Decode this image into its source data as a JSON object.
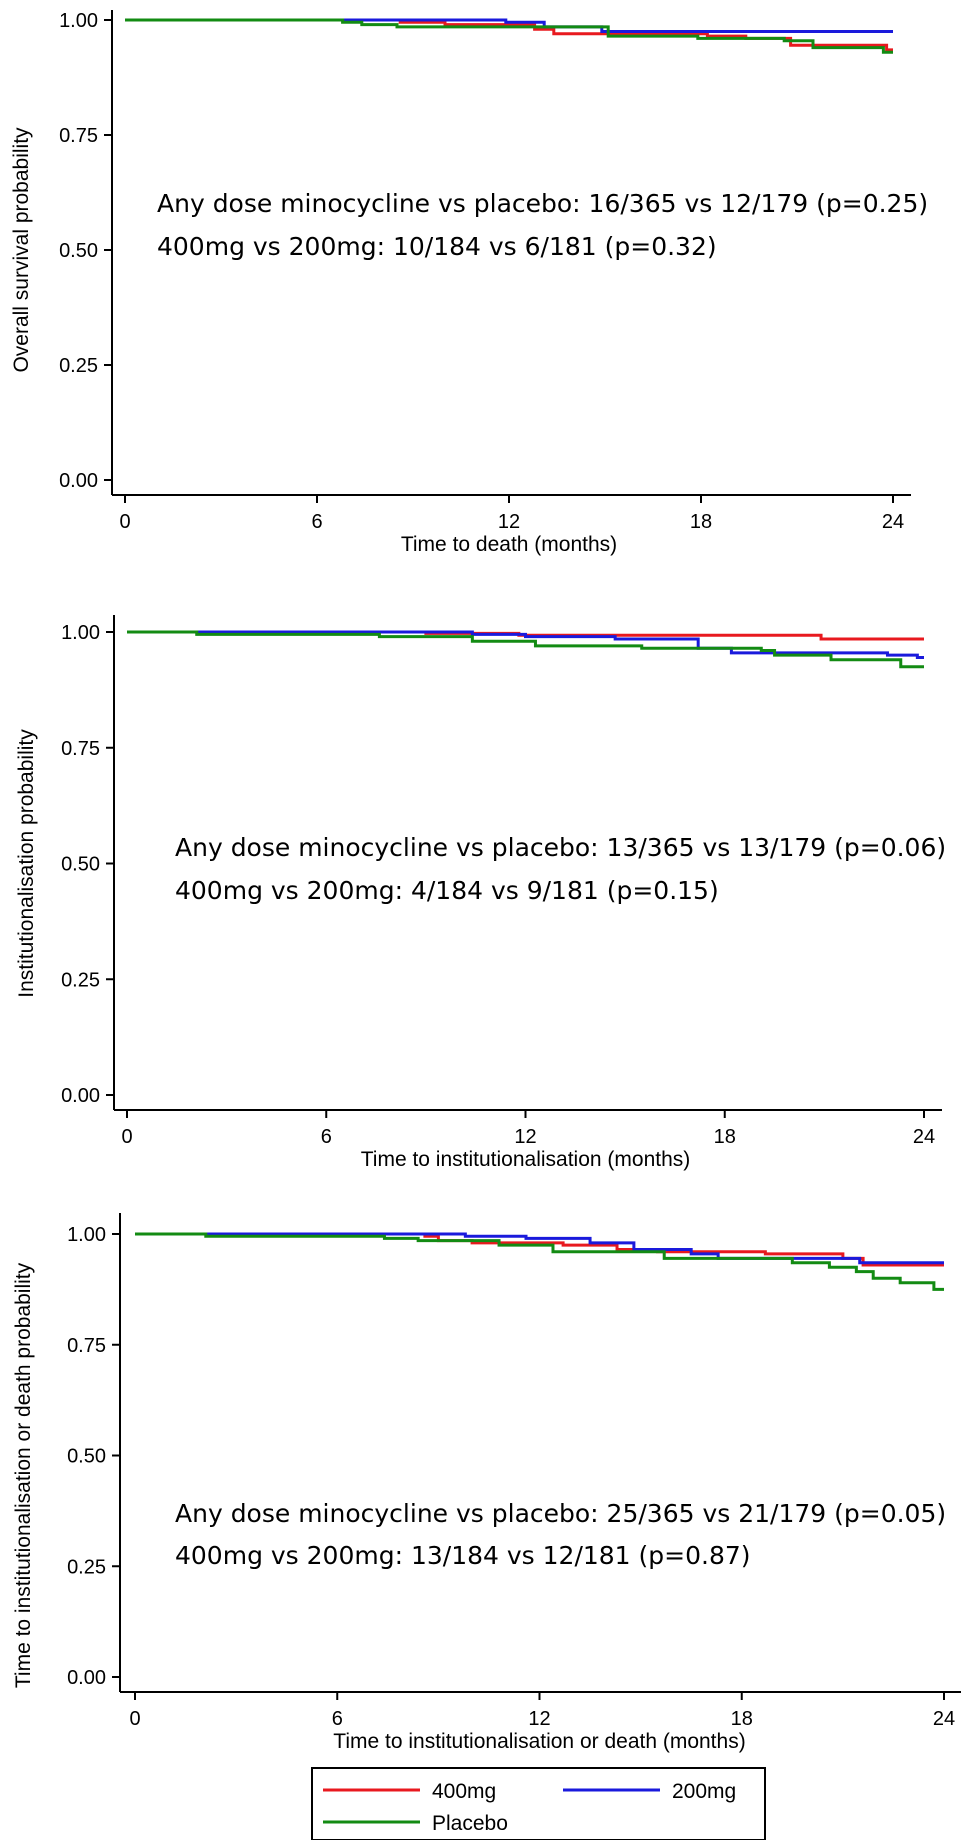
{
  "chart_data": [
    {
      "type": "line",
      "xlabel": "Time to death (months)",
      "ylabel": "Overall survival probability",
      "xlim": [
        0,
        24
      ],
      "ylim": [
        0,
        1
      ],
      "xticks": [
        "0",
        "6",
        "12",
        "18",
        "24"
      ],
      "yticks": [
        "0.00",
        "0.25",
        "0.50",
        "0.75",
        "1.00"
      ],
      "annotations": [
        "Any dose minocycline vs placebo: 16/365 vs 12/179 (p=0.25)",
        "400mg vs 200mg: 10/184 vs 6/181 (p=0.32)"
      ],
      "series": [
        {
          "name": "400mg",
          "color": "#e8191f",
          "x": [
            0,
            8.6,
            10,
            12.8,
            13.4,
            18.2,
            19.4,
            20.8,
            23.8,
            24
          ],
          "y": [
            1.0,
            0.995,
            0.99,
            0.98,
            0.97,
            0.965,
            0.96,
            0.945,
            0.935,
            0.935
          ]
        },
        {
          "name": "200mg",
          "color": "#1a1adc",
          "x": [
            0,
            6.8,
            11.9,
            13.1,
            14.9,
            24
          ],
          "y": [
            1.0,
            1.0,
            0.995,
            0.985,
            0.975,
            0.975
          ]
        },
        {
          "name": "Placebo",
          "color": "#138b13",
          "x": [
            0,
            6.8,
            7.4,
            8.5,
            15.1,
            17.9,
            20.6,
            21.5,
            23.7,
            24
          ],
          "y": [
            1.0,
            0.995,
            0.99,
            0.985,
            0.965,
            0.96,
            0.955,
            0.94,
            0.93,
            0.93
          ]
        }
      ]
    },
    {
      "type": "line",
      "xlabel": "Time to institutionalisation (months)",
      "ylabel": "Institutionalisation probability",
      "xlim": [
        0,
        24
      ],
      "ylim": [
        0,
        1
      ],
      "xticks": [
        "0",
        "6",
        "12",
        "18",
        "24"
      ],
      "yticks": [
        "0.00",
        "0.25",
        "0.50",
        "0.75",
        "1.00"
      ],
      "annotations": [
        "Any dose minocycline vs placebo: 13/365 vs 13/179 (p=0.06)",
        "400mg vs 200mg: 4/184 vs 9/181 (p=0.15)"
      ],
      "series": [
        {
          "name": "400mg",
          "color": "#e8191f",
          "x": [
            0,
            9,
            11.8,
            20.9,
            24
          ],
          "y": [
            1.0,
            0.997,
            0.993,
            0.985,
            0.985
          ]
        },
        {
          "name": "200mg",
          "color": "#1a1adc",
          "x": [
            0,
            2.1,
            10.4,
            12,
            14.7,
            17.2,
            18.2,
            22.9,
            23.8,
            24
          ],
          "y": [
            1.0,
            1.0,
            0.995,
            0.99,
            0.985,
            0.965,
            0.955,
            0.95,
            0.945,
            0.945
          ]
        },
        {
          "name": "Placebo",
          "color": "#138b13",
          "x": [
            0,
            2.1,
            7.6,
            10.4,
            12.3,
            15.5,
            19.1,
            19.5,
            21.2,
            23.3,
            24
          ],
          "y": [
            1.0,
            0.995,
            0.99,
            0.98,
            0.97,
            0.965,
            0.96,
            0.95,
            0.94,
            0.925,
            0.925
          ]
        }
      ]
    },
    {
      "type": "line",
      "xlabel": "Time to institutionalisation or death (months)",
      "ylabel": "Time to institutionalisation or death probability",
      "xlim": [
        0,
        24
      ],
      "ylim": [
        0,
        1
      ],
      "xticks": [
        "0",
        "6",
        "12",
        "18",
        "24"
      ],
      "yticks": [
        "0.00",
        "0.25",
        "0.50",
        "0.75",
        "1.00"
      ],
      "annotations": [
        "Any dose minocycline vs placebo: 25/365 vs 21/179 (p=0.05)",
        "400mg vs 200mg: 13/184 vs 12/181 (p=0.87)"
      ],
      "series": [
        {
          "name": "400mg",
          "color": "#e8191f",
          "x": [
            0,
            8.6,
            9,
            10,
            12.7,
            14.3,
            15.5,
            18.7,
            21,
            21.6,
            24
          ],
          "y": [
            1.0,
            0.995,
            0.985,
            0.98,
            0.975,
            0.965,
            0.96,
            0.955,
            0.945,
            0.93,
            0.93
          ]
        },
        {
          "name": "200mg",
          "color": "#1a1adc",
          "x": [
            0,
            2.1,
            9.8,
            11.6,
            13.5,
            14.8,
            16.5,
            17.3,
            21.5,
            24
          ],
          "y": [
            1.0,
            1.0,
            0.995,
            0.99,
            0.98,
            0.965,
            0.955,
            0.945,
            0.935,
            0.935
          ]
        },
        {
          "name": "Placebo",
          "color": "#138b13",
          "x": [
            0,
            2.1,
            7.4,
            8.4,
            10.8,
            12.4,
            15.7,
            19.5,
            20.6,
            21.4,
            21.9,
            22.7,
            23.7,
            24
          ],
          "y": [
            1.0,
            0.995,
            0.99,
            0.985,
            0.975,
            0.96,
            0.945,
            0.935,
            0.925,
            0.915,
            0.9,
            0.89,
            0.875,
            0.875
          ]
        }
      ]
    }
  ],
  "legend": [
    {
      "label": "400mg",
      "color": "#e8191f"
    },
    {
      "label": "200mg",
      "color": "#1a1adc"
    },
    {
      "label": "Placebo",
      "color": "#138b13"
    }
  ]
}
